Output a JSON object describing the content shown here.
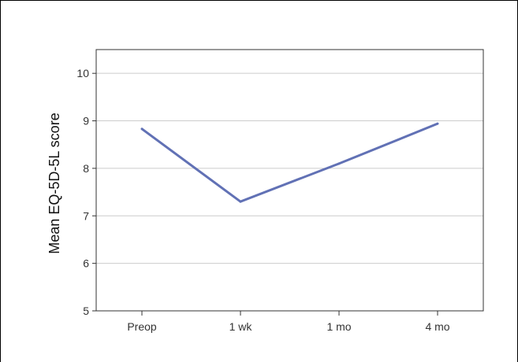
{
  "chart_data": {
    "type": "line",
    "title": "",
    "xlabel": "",
    "ylabel": "Mean EQ-5D-5L score",
    "categories": [
      "Preop",
      "1 wk",
      "1 mo",
      "4 mo"
    ],
    "series": [
      {
        "values": [
          8.83,
          7.3,
          8.1,
          8.94
        ]
      }
    ],
    "ylim": [
      5,
      10.5
    ],
    "yticks": [
      "5",
      "6",
      "7",
      "8",
      "9",
      "10"
    ],
    "grid": true,
    "legend": "none",
    "colors": {
      "line": "#6171b5",
      "grid": "#cccccc",
      "axis": "#333333"
    }
  }
}
